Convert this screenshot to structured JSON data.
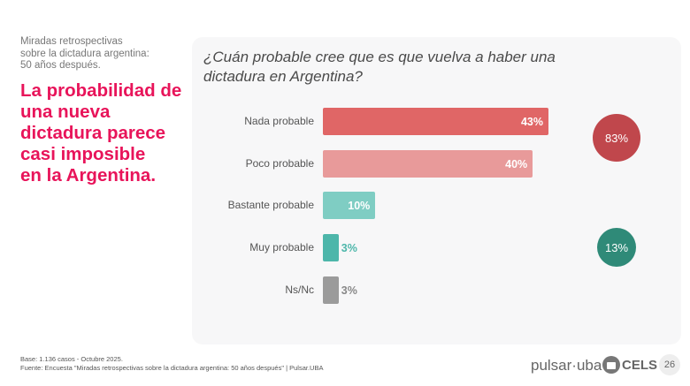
{
  "header": {
    "subtitle_lines": [
      "Miradas retrospectivas",
      "sobre la dictadura argentina:",
      "50 años después."
    ],
    "headline_lines": [
      "La probabilidad de",
      "una nueva",
      "dictadura parece",
      "casi imposible",
      "en la Argentina."
    ]
  },
  "chart_data": {
    "type": "bar",
    "orientation": "horizontal",
    "title": "¿Cuán probable cree que es que vuelva a haber una dictadura en Argentina?",
    "categories": [
      "Nada probable",
      "Poco probable",
      "Bastante probable",
      "Muy probable",
      "Ns/Nc"
    ],
    "values": [
      43,
      40,
      10,
      3,
      3
    ],
    "value_labels": [
      "43%",
      "40%",
      "10%",
      "3%",
      "3%"
    ],
    "colors": [
      "#e06666",
      "#e89a9a",
      "#7fcdc3",
      "#4db6aa",
      "#9b9b9b"
    ],
    "groups": [
      {
        "label": "83%",
        "value": 83,
        "color": "#c0474c",
        "categories": [
          "Nada probable",
          "Poco probable"
        ]
      },
      {
        "label": "13%",
        "value": 13,
        "color": "#2f8a78",
        "categories": [
          "Bastante probable",
          "Muy probable"
        ]
      }
    ],
    "xlim": [
      0,
      100
    ],
    "grid": false
  },
  "footer": {
    "base": "Base: 1.136 casos - Octubre 2025.",
    "source": "Fuente: Encuesta \"Miradas retrospectivas sobre la dictadura argentina: 50 años después\" | Pulsar.UBA",
    "logo_pulsar": "pulsar·uba",
    "logo_cels": "CELS",
    "page_number": "26"
  }
}
